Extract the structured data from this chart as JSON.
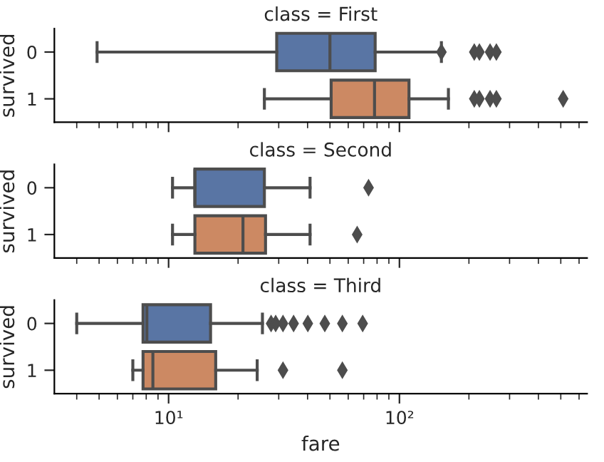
{
  "chart_data": [
    {
      "type": "box",
      "orientation": "horizontal",
      "title": "class = First",
      "ylabel": "survived",
      "categories": [
        "0",
        "1"
      ],
      "colors": [
        "#5975a4",
        "#cc8963"
      ],
      "log": "x",
      "xlim": [
        3.2,
        650
      ],
      "tick_labels": "y",
      "xticks": [
        {
          "value": 4,
          "label": null
        },
        {
          "value": 5,
          "label": null
        },
        {
          "value": 6,
          "label": null
        },
        {
          "value": 7,
          "label": null
        },
        {
          "value": 8,
          "label": null
        },
        {
          "value": 9,
          "label": null
        },
        {
          "value": 10,
          "label": null
        },
        {
          "value": 20,
          "label": null
        },
        {
          "value": 30,
          "label": null
        },
        {
          "value": 40,
          "label": null
        },
        {
          "value": 50,
          "label": null
        },
        {
          "value": 60,
          "label": null
        },
        {
          "value": 70,
          "label": null
        },
        {
          "value": 80,
          "label": null
        },
        {
          "value": 90,
          "label": null
        },
        {
          "value": 100,
          "label": null
        },
        {
          "value": 200,
          "label": null
        },
        {
          "value": 300,
          "label": null
        },
        {
          "value": 400,
          "label": null
        },
        {
          "value": 500,
          "label": null
        },
        {
          "value": 600,
          "label": null
        }
      ],
      "boxes": [
        {
          "low": 4.9,
          "q1": 29.4,
          "median": 50,
          "q3": 78.5,
          "high": 152,
          "outliers": [
            152,
            211,
            222,
            247,
            263
          ]
        },
        {
          "low": 26,
          "q1": 50.6,
          "median": 78,
          "q3": 110,
          "high": 163,
          "outliers": [
            211,
            222,
            247,
            263,
            512
          ]
        }
      ]
    },
    {
      "type": "box",
      "orientation": "horizontal",
      "title": "class = Second",
      "ylabel": "survived",
      "categories": [
        "0",
        "1"
      ],
      "colors": [
        "#5975a4",
        "#cc8963"
      ],
      "log": "x",
      "xlim": [
        3.2,
        650
      ],
      "tick_labels": "y",
      "xticks": [
        {
          "value": 4,
          "label": null
        },
        {
          "value": 5,
          "label": null
        },
        {
          "value": 6,
          "label": null
        },
        {
          "value": 7,
          "label": null
        },
        {
          "value": 8,
          "label": null
        },
        {
          "value": 9,
          "label": null
        },
        {
          "value": 10,
          "label": null
        },
        {
          "value": 20,
          "label": null
        },
        {
          "value": 30,
          "label": null
        },
        {
          "value": 40,
          "label": null
        },
        {
          "value": 50,
          "label": null
        },
        {
          "value": 60,
          "label": null
        },
        {
          "value": 70,
          "label": null
        },
        {
          "value": 80,
          "label": null
        },
        {
          "value": 90,
          "label": null
        },
        {
          "value": 100,
          "label": null
        },
        {
          "value": 200,
          "label": null
        },
        {
          "value": 300,
          "label": null
        },
        {
          "value": 400,
          "label": null
        },
        {
          "value": 500,
          "label": null
        },
        {
          "value": 600,
          "label": null
        }
      ],
      "boxes": [
        {
          "low": 10.4,
          "q1": 13,
          "median": 13,
          "q3": 26,
          "high": 41,
          "outliers": [
            73.5
          ]
        },
        {
          "low": 10.4,
          "q1": 13,
          "median": 21,
          "q3": 26.3,
          "high": 41,
          "outliers": [
            65.6
          ]
        }
      ]
    },
    {
      "type": "box",
      "orientation": "horizontal",
      "title": "class = Third",
      "ylabel": "survived",
      "xlabel": "fare",
      "categories": [
        "0",
        "1"
      ],
      "colors": [
        "#5975a4",
        "#cc8963"
      ],
      "log": "x",
      "xlim": [
        3.2,
        650
      ],
      "xticks": [
        {
          "value": 4,
          "label": null
        },
        {
          "value": 5,
          "label": null
        },
        {
          "value": 6,
          "label": null
        },
        {
          "value": 7,
          "label": null
        },
        {
          "value": 8,
          "label": null
        },
        {
          "value": 9,
          "label": null
        },
        {
          "value": 10,
          "label": "10¹"
        },
        {
          "value": 20,
          "label": null
        },
        {
          "value": 30,
          "label": null
        },
        {
          "value": 40,
          "label": null
        },
        {
          "value": 50,
          "label": null
        },
        {
          "value": 60,
          "label": null
        },
        {
          "value": 70,
          "label": null
        },
        {
          "value": 80,
          "label": null
        },
        {
          "value": 90,
          "label": null
        },
        {
          "value": 100,
          "label": "10²"
        },
        {
          "value": 200,
          "label": null
        },
        {
          "value": 300,
          "label": null
        },
        {
          "value": 400,
          "label": null
        },
        {
          "value": 500,
          "label": null
        },
        {
          "value": 600,
          "label": null
        }
      ],
      "boxes": [
        {
          "low": 4.0,
          "q1": 7.75,
          "median": 8.05,
          "q3": 15.2,
          "high": 25.5,
          "outliers": [
            27.8,
            29.1,
            31.3,
            34.8,
            40.1,
            47.5,
            56.6,
            69.3
          ]
        },
        {
          "low": 7.0,
          "q1": 7.75,
          "median": 8.55,
          "q3": 16,
          "high": 24.2,
          "outliers": [
            31.3,
            56.6
          ]
        }
      ]
    }
  ]
}
